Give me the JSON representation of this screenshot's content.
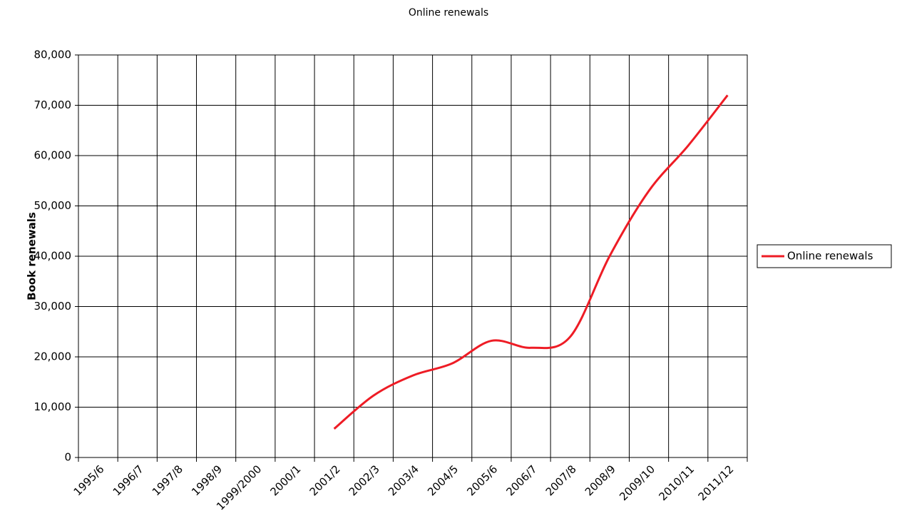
{
  "chart_data": {
    "type": "line",
    "title": "Online renewals",
    "y_label": "Book renewals",
    "categories": [
      "1995/6",
      "1996/7",
      "1997/8",
      "1998/9",
      "1999/2000",
      "2000/1",
      "2001/2",
      "2002/3",
      "2003/4",
      "2004/5",
      "2005/6",
      "2006/7",
      "2007/8",
      "2008/9",
      "2009/10",
      "2010/11",
      "2011/12"
    ],
    "series": [
      {
        "name": "Online renewals",
        "color": "#ee1c25",
        "values": [
          null,
          null,
          null,
          null,
          null,
          null,
          5700,
          12300,
          16300,
          18700,
          23200,
          21800,
          24000,
          40000,
          53000,
          62000,
          72000
        ]
      }
    ],
    "ylim": [
      0,
      80000
    ],
    "yticks": [
      0,
      {
        "value": 10000,
        "label": "10,000"
      },
      {
        "value": 20000,
        "label": "20,000"
      },
      {
        "value": 30000,
        "label": "30,000"
      },
      {
        "value": 40000,
        "label": "40,000"
      },
      {
        "value": 50000,
        "label": "50,000"
      },
      {
        "value": 60000,
        "label": "60,000"
      },
      {
        "value": 70000,
        "label": "70,000"
      },
      {
        "value": 80000,
        "label": "80,000"
      }
    ],
    "grid": true,
    "legend": "right"
  }
}
